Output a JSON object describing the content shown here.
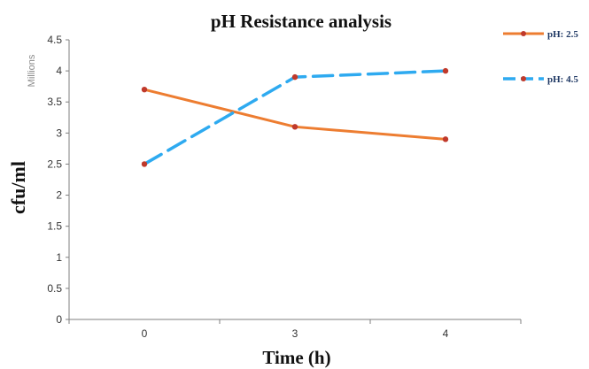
{
  "chart_data": {
    "type": "line",
    "title": "pH Resistance analysis",
    "xlabel": "Time (h)",
    "ylabel": "cfu/ml",
    "y_units_label": "Millions",
    "categories": [
      "0",
      "3",
      "4"
    ],
    "ylim": [
      0,
      4.5
    ],
    "y_ticks": [
      "0",
      "0.5",
      "1",
      "1.5",
      "2",
      "2.5",
      "3",
      "3.5",
      "4",
      "4.5"
    ],
    "grid": false,
    "legend_position": "top-right",
    "series": [
      {
        "name": "pH: 2.5",
        "values": [
          3.7,
          3.1,
          2.9
        ],
        "color": "#ed7d31",
        "style": "solid",
        "marker_color": "#c0392b"
      },
      {
        "name": "pH: 4.5",
        "values": [
          2.5,
          3.9,
          4.0
        ],
        "color": "#2eaaf0",
        "style": "dashed",
        "marker_color": "#c0392b"
      }
    ]
  }
}
